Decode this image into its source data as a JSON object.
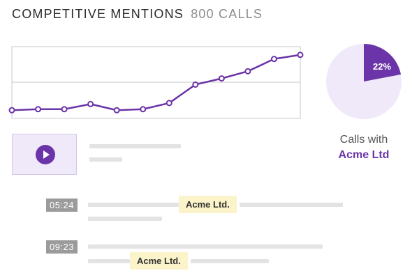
{
  "header": {
    "title": "COMPETITIVE MENTIONS",
    "count": "800 CALLS"
  },
  "colors": {
    "accent": "#6b34a8",
    "pie_bg": "#efe9fa",
    "highlight": "#fbf3c9"
  },
  "chart_data": {
    "type": "line",
    "title": "",
    "xlabel": "",
    "ylabel": "",
    "series": [
      {
        "values": [
          8,
          9,
          9,
          14,
          8,
          9,
          15,
          33,
          39,
          46,
          58,
          62
        ]
      }
    ],
    "ylim": [
      0,
      70
    ],
    "grid": true
  },
  "pie": {
    "percent": 22,
    "label": "22%",
    "caption_line1": "Calls with",
    "caption_line2": "Acme Ltd"
  },
  "video": {
    "icon": "play-icon"
  },
  "mentions": [
    {
      "timestamp": "05:24",
      "tag": "Acme Ltd."
    },
    {
      "timestamp": "09:23",
      "tag": "Acme Ltd."
    }
  ]
}
